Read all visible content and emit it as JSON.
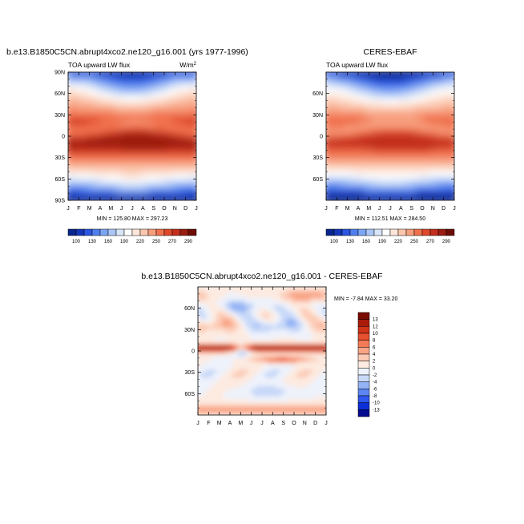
{
  "palettes": {
    "abs": [
      "#08258d",
      "#1437b8",
      "#2a56e0",
      "#4f7fef",
      "#7ca5f4",
      "#abc6f6",
      "#d8e5f8",
      "#ffffff",
      "#fde6d9",
      "#fbc6ad",
      "#f79e7d",
      "#f0714d",
      "#e0482a",
      "#c32f1c",
      "#9b1c10",
      "#6e0d05"
    ],
    "diff": [
      "#050a8f",
      "#0b2ed6",
      "#2e58ee",
      "#5d86f2",
      "#93b3f5",
      "#c8d8f8",
      "#eef2fb",
      "#fdeae0",
      "#fccbb5",
      "#f8a486",
      "#f27a57",
      "#e5502f",
      "#cf3318",
      "#a91c0b",
      "#7a0a02"
    ]
  },
  "chart_data": [
    {
      "type": "heatmap",
      "title": "b.e13.B1850C5CN.abrupt4xco2.ne120_g16.001 (yrs 1977-1996)",
      "subtitle_left": "TOA upward LW flux",
      "units": "W/m",
      "units_sup": "2",
      "x_ticks": [
        "J",
        "F",
        "M",
        "A",
        "M",
        "J",
        "J",
        "A",
        "S",
        "O",
        "N",
        "D",
        "J"
      ],
      "y_range": [
        -90,
        90
      ],
      "y_ticks": [
        {
          "v": 90,
          "label": "90N"
        },
        {
          "v": 60,
          "label": "60N"
        },
        {
          "v": 30,
          "label": "30N"
        },
        {
          "v": 0,
          "label": "0"
        },
        {
          "v": -30,
          "label": "30S"
        },
        {
          "v": -60,
          "label": "60S"
        },
        {
          "v": -90,
          "label": "90S"
        }
      ],
      "min_max": "MIN = 125.80  MAX = 297.23",
      "min": 125.8,
      "max": 297.23,
      "colorbar": {
        "orientation": "horizontal",
        "levels": [
          100,
          115,
          130,
          145,
          160,
          175,
          190,
          205,
          220,
          235,
          250,
          265,
          270,
          280,
          290
        ],
        "tick_labels": [
          "100",
          "130",
          "160",
          "190",
          "220",
          "250",
          "270",
          "290"
        ],
        "tick_level_index": [
          0,
          2,
          4,
          6,
          8,
          10,
          12,
          14
        ]
      }
    },
    {
      "type": "heatmap",
      "title": "CERES-EBAF",
      "subtitle_left": "TOA upward LW flux",
      "x_ticks": [
        "J",
        "F",
        "M",
        "A",
        "M",
        "J",
        "J",
        "A",
        "S",
        "O",
        "N",
        "D",
        "J"
      ],
      "y_range": [
        -90,
        90
      ],
      "y_ticks": [
        {
          "v": 60,
          "label": "60N"
        },
        {
          "v": 30,
          "label": "30N"
        },
        {
          "v": 0,
          "label": "0"
        },
        {
          "v": -30,
          "label": "30S"
        },
        {
          "v": -60,
          "label": "60S"
        }
      ],
      "min_max": "MIN = 112.51  MAX = 284.50",
      "min": 112.51,
      "max": 284.5,
      "colorbar": {
        "orientation": "horizontal",
        "levels": [
          100,
          115,
          130,
          145,
          160,
          175,
          190,
          205,
          220,
          235,
          250,
          265,
          270,
          280,
          290
        ],
        "tick_labels": [
          "100",
          "130",
          "160",
          "190",
          "220",
          "250",
          "270",
          "290"
        ],
        "tick_level_index": [
          0,
          2,
          4,
          6,
          8,
          10,
          12,
          14
        ]
      }
    },
    {
      "type": "heatmap",
      "title": "b.e13.B1850C5CN.abrupt4xco2.ne120_g16.001 - CERES-EBAF",
      "x_ticks": [
        "J",
        "F",
        "M",
        "A",
        "M",
        "J",
        "J",
        "A",
        "S",
        "O",
        "N",
        "D",
        "J"
      ],
      "y_range": [
        -90,
        90
      ],
      "y_ticks": [
        {
          "v": 60,
          "label": "60N"
        },
        {
          "v": 30,
          "label": "30N"
        },
        {
          "v": 0,
          "label": "0"
        },
        {
          "v": -30,
          "label": "30S"
        },
        {
          "v": -60,
          "label": "60S"
        }
      ],
      "min_max": "MIN =  -7.84  MAX =  33.20",
      "min": -7.84,
      "max": 33.2,
      "colorbar": {
        "orientation": "vertical",
        "levels": [
          "13",
          "12",
          "10",
          "8",
          "6",
          "4",
          "2",
          "0",
          "-2",
          "-4",
          "-6",
          "-8",
          "-10",
          "-13"
        ]
      }
    }
  ]
}
